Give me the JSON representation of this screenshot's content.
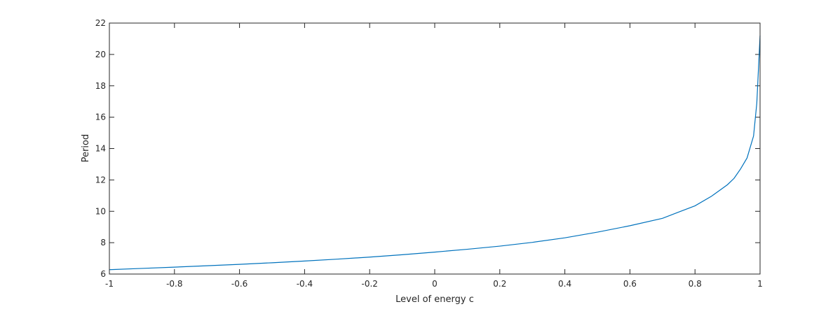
{
  "chart_data": {
    "type": "line",
    "title": "",
    "xlabel": "Level of energy c",
    "ylabel": "Period",
    "xlim": [
      -1,
      1
    ],
    "ylim": [
      6,
      22
    ],
    "xticks": [
      -1,
      -0.8,
      -0.6,
      -0.4,
      -0.2,
      0,
      0.2,
      0.4,
      0.6,
      0.8,
      1
    ],
    "yticks": [
      6,
      8,
      10,
      12,
      14,
      16,
      18,
      20,
      22
    ],
    "xtick_labels": [
      "-1",
      "-0.8",
      "-0.6",
      "-0.4",
      "-0.2",
      "0",
      "0.2",
      "0.4",
      "0.6",
      "0.8",
      "1"
    ],
    "ytick_labels": [
      "6",
      "8",
      "10",
      "12",
      "14",
      "16",
      "18",
      "20",
      "22"
    ],
    "grid": false,
    "box": true,
    "colors": {
      "series": "#0072bd",
      "axis": "#262626"
    },
    "series": [
      {
        "x": [
          -1,
          -0.9,
          -0.8,
          -0.7,
          -0.6,
          -0.5,
          -0.4,
          -0.3,
          -0.2,
          -0.1,
          0,
          0.1,
          0.2,
          0.3,
          0.4,
          0.5,
          0.6,
          0.7,
          0.75,
          0.8,
          0.85,
          0.88,
          0.9,
          0.92,
          0.94,
          0.96,
          0.98,
          0.99,
          1.0
        ],
        "y": [
          6.28,
          6.36,
          6.44,
          6.53,
          6.62,
          6.72,
          6.83,
          6.95,
          7.08,
          7.23,
          7.4,
          7.58,
          7.78,
          8.02,
          8.31,
          8.67,
          9.08,
          9.55,
          9.95,
          10.35,
          10.95,
          11.4,
          11.7,
          12.1,
          12.7,
          13.4,
          14.8,
          16.9,
          21.2
        ]
      }
    ]
  }
}
